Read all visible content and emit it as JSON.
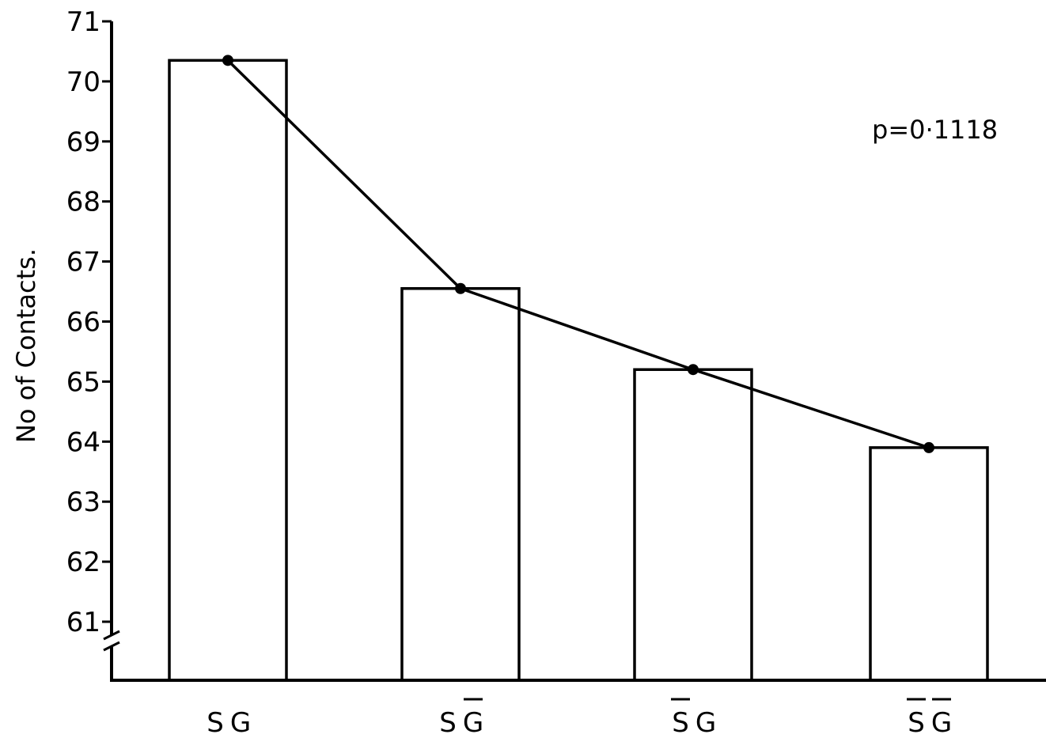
{
  "chart_data": {
    "type": "bar",
    "categories": [
      "S G",
      "S G̅",
      "S̅ G",
      "S̅ G̅"
    ],
    "category_parts": [
      [
        {
          "t": "S",
          "bar": false
        },
        {
          "t": "G",
          "bar": false
        }
      ],
      [
        {
          "t": "S",
          "bar": false
        },
        {
          "t": "G",
          "bar": true
        }
      ],
      [
        {
          "t": "S",
          "bar": true
        },
        {
          "t": "G",
          "bar": false
        }
      ],
      [
        {
          "t": "S",
          "bar": true
        },
        {
          "t": "G",
          "bar": true
        }
      ]
    ],
    "values": [
      70.35,
      66.55,
      65.2,
      63.9
    ],
    "line_overlay": true,
    "ylabel": "No of Contacts.",
    "xlabel": "",
    "ylim": [
      60.1,
      71
    ],
    "yticks": [
      61,
      62,
      63,
      64,
      65,
      66,
      67,
      68,
      69,
      70,
      71
    ],
    "axis_break": true,
    "annotation": "p=0·1118",
    "grid": false
  }
}
